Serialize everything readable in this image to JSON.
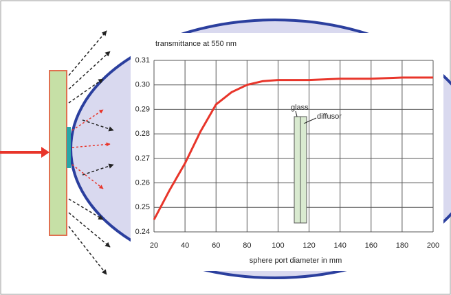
{
  "chart_data": {
    "type": "line",
    "title": "transmittance at 550 nm",
    "x_label": "sphere port diameter in mm",
    "annotations": [
      "glass",
      "diffusor"
    ],
    "x": [
      20,
      30,
      40,
      50,
      60,
      70,
      80,
      90,
      100,
      120,
      140,
      160,
      180,
      200
    ],
    "series": [
      {
        "color": "#e8352a",
        "values": [
          0.245,
          0.257,
          0.268,
          0.281,
          0.292,
          0.297,
          0.3,
          0.3015,
          0.302,
          0.302,
          0.3025,
          0.3025,
          0.303,
          0.303
        ]
      }
    ],
    "xlim": [
      20,
      200
    ],
    "xticks": [
      20,
      40,
      60,
      80,
      100,
      120,
      140,
      160,
      180,
      200
    ],
    "ylim": [
      0.24,
      0.31
    ],
    "yticks": [
      0.24,
      0.25,
      0.26,
      0.27,
      0.28,
      0.29,
      {
        "value": 0.3,
        "label": "0.30"
      },
      0.31
    ],
    "grid": true
  }
}
